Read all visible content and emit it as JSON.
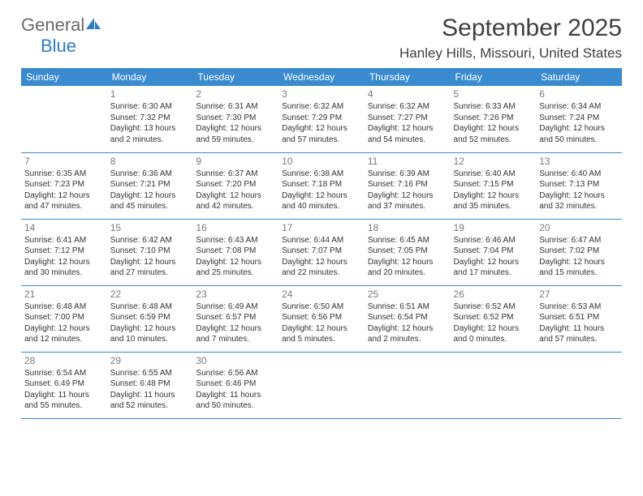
{
  "logo": {
    "part1": "General",
    "part2": "Blue"
  },
  "title": "September 2025",
  "location": "Hanley Hills, Missouri, United States",
  "colors": {
    "header_bg": "#3a8ad0",
    "header_text": "#ffffff",
    "brand_gray": "#6a6a6a",
    "brand_blue": "#2d7dc7",
    "daynum": "#7a7a7a",
    "body_text": "#333333",
    "title_text": "#404040",
    "border": "#3a8ad0",
    "background": "#ffffff"
  },
  "typography": {
    "title_fontsize": 30,
    "location_fontsize": 17,
    "dayheader_fontsize": 12,
    "daynum_fontsize": 12,
    "cell_fontsize": 10
  },
  "days_of_week": [
    "Sunday",
    "Monday",
    "Tuesday",
    "Wednesday",
    "Thursday",
    "Friday",
    "Saturday"
  ],
  "weeks": [
    [
      null,
      {
        "n": 1,
        "sunrise": "6:30 AM",
        "sunset": "7:32 PM",
        "daylight": "13 hours and 2 minutes."
      },
      {
        "n": 2,
        "sunrise": "6:31 AM",
        "sunset": "7:30 PM",
        "daylight": "12 hours and 59 minutes."
      },
      {
        "n": 3,
        "sunrise": "6:32 AM",
        "sunset": "7:29 PM",
        "daylight": "12 hours and 57 minutes."
      },
      {
        "n": 4,
        "sunrise": "6:32 AM",
        "sunset": "7:27 PM",
        "daylight": "12 hours and 54 minutes."
      },
      {
        "n": 5,
        "sunrise": "6:33 AM",
        "sunset": "7:26 PM",
        "daylight": "12 hours and 52 minutes."
      },
      {
        "n": 6,
        "sunrise": "6:34 AM",
        "sunset": "7:24 PM",
        "daylight": "12 hours and 50 minutes."
      }
    ],
    [
      {
        "n": 7,
        "sunrise": "6:35 AM",
        "sunset": "7:23 PM",
        "daylight": "12 hours and 47 minutes."
      },
      {
        "n": 8,
        "sunrise": "6:36 AM",
        "sunset": "7:21 PM",
        "daylight": "12 hours and 45 minutes."
      },
      {
        "n": 9,
        "sunrise": "6:37 AM",
        "sunset": "7:20 PM",
        "daylight": "12 hours and 42 minutes."
      },
      {
        "n": 10,
        "sunrise": "6:38 AM",
        "sunset": "7:18 PM",
        "daylight": "12 hours and 40 minutes."
      },
      {
        "n": 11,
        "sunrise": "6:39 AM",
        "sunset": "7:16 PM",
        "daylight": "12 hours and 37 minutes."
      },
      {
        "n": 12,
        "sunrise": "6:40 AM",
        "sunset": "7:15 PM",
        "daylight": "12 hours and 35 minutes."
      },
      {
        "n": 13,
        "sunrise": "6:40 AM",
        "sunset": "7:13 PM",
        "daylight": "12 hours and 32 minutes."
      }
    ],
    [
      {
        "n": 14,
        "sunrise": "6:41 AM",
        "sunset": "7:12 PM",
        "daylight": "12 hours and 30 minutes."
      },
      {
        "n": 15,
        "sunrise": "6:42 AM",
        "sunset": "7:10 PM",
        "daylight": "12 hours and 27 minutes."
      },
      {
        "n": 16,
        "sunrise": "6:43 AM",
        "sunset": "7:08 PM",
        "daylight": "12 hours and 25 minutes."
      },
      {
        "n": 17,
        "sunrise": "6:44 AM",
        "sunset": "7:07 PM",
        "daylight": "12 hours and 22 minutes."
      },
      {
        "n": 18,
        "sunrise": "6:45 AM",
        "sunset": "7:05 PM",
        "daylight": "12 hours and 20 minutes."
      },
      {
        "n": 19,
        "sunrise": "6:46 AM",
        "sunset": "7:04 PM",
        "daylight": "12 hours and 17 minutes."
      },
      {
        "n": 20,
        "sunrise": "6:47 AM",
        "sunset": "7:02 PM",
        "daylight": "12 hours and 15 minutes."
      }
    ],
    [
      {
        "n": 21,
        "sunrise": "6:48 AM",
        "sunset": "7:00 PM",
        "daylight": "12 hours and 12 minutes."
      },
      {
        "n": 22,
        "sunrise": "6:48 AM",
        "sunset": "6:59 PM",
        "daylight": "12 hours and 10 minutes."
      },
      {
        "n": 23,
        "sunrise": "6:49 AM",
        "sunset": "6:57 PM",
        "daylight": "12 hours and 7 minutes."
      },
      {
        "n": 24,
        "sunrise": "6:50 AM",
        "sunset": "6:56 PM",
        "daylight": "12 hours and 5 minutes."
      },
      {
        "n": 25,
        "sunrise": "6:51 AM",
        "sunset": "6:54 PM",
        "daylight": "12 hours and 2 minutes."
      },
      {
        "n": 26,
        "sunrise": "6:52 AM",
        "sunset": "6:52 PM",
        "daylight": "12 hours and 0 minutes."
      },
      {
        "n": 27,
        "sunrise": "6:53 AM",
        "sunset": "6:51 PM",
        "daylight": "11 hours and 57 minutes."
      }
    ],
    [
      {
        "n": 28,
        "sunrise": "6:54 AM",
        "sunset": "6:49 PM",
        "daylight": "11 hours and 55 minutes."
      },
      {
        "n": 29,
        "sunrise": "6:55 AM",
        "sunset": "6:48 PM",
        "daylight": "11 hours and 52 minutes."
      },
      {
        "n": 30,
        "sunrise": "6:56 AM",
        "sunset": "6:46 PM",
        "daylight": "11 hours and 50 minutes."
      },
      null,
      null,
      null,
      null
    ]
  ],
  "labels": {
    "sunrise": "Sunrise:",
    "sunset": "Sunset:",
    "daylight": "Daylight:"
  }
}
